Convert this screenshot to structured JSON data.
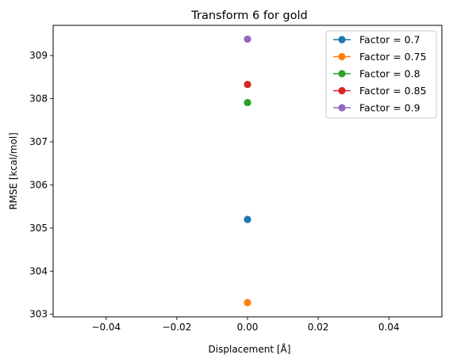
{
  "chart_data": {
    "type": "scatter",
    "title": "Transform 6 for gold",
    "xlabel": "Displacement [Å]",
    "ylabel": "RMSE [kcal/mol]",
    "xlim": [
      -0.055,
      0.055
    ],
    "ylim": [
      302.94,
      309.7
    ],
    "xticks": [
      -0.04,
      -0.02,
      0.0,
      0.02,
      0.04
    ],
    "xtick_labels": [
      "−0.04",
      "−0.02",
      "0.00",
      "0.02",
      "0.04"
    ],
    "yticks": [
      303,
      304,
      305,
      306,
      307,
      308,
      309
    ],
    "ytick_labels": [
      "303",
      "304",
      "305",
      "306",
      "307",
      "308",
      "309"
    ],
    "grid": false,
    "legend_position": "top-right",
    "series": [
      {
        "name": "Factor = 0.7",
        "color": "#1f77b4",
        "x": [
          0.0
        ],
        "y": [
          305.2
        ]
      },
      {
        "name": "Factor = 0.75",
        "color": "#ff7f0e",
        "x": [
          0.0
        ],
        "y": [
          303.27
        ]
      },
      {
        "name": "Factor = 0.8",
        "color": "#2ca02c",
        "x": [
          0.0
        ],
        "y": [
          307.91
        ]
      },
      {
        "name": "Factor = 0.85",
        "color": "#d62728",
        "x": [
          0.0
        ],
        "y": [
          308.33
        ]
      },
      {
        "name": "Factor = 0.9",
        "color": "#9467bd",
        "x": [
          0.0
        ],
        "y": [
          309.38
        ]
      }
    ]
  }
}
